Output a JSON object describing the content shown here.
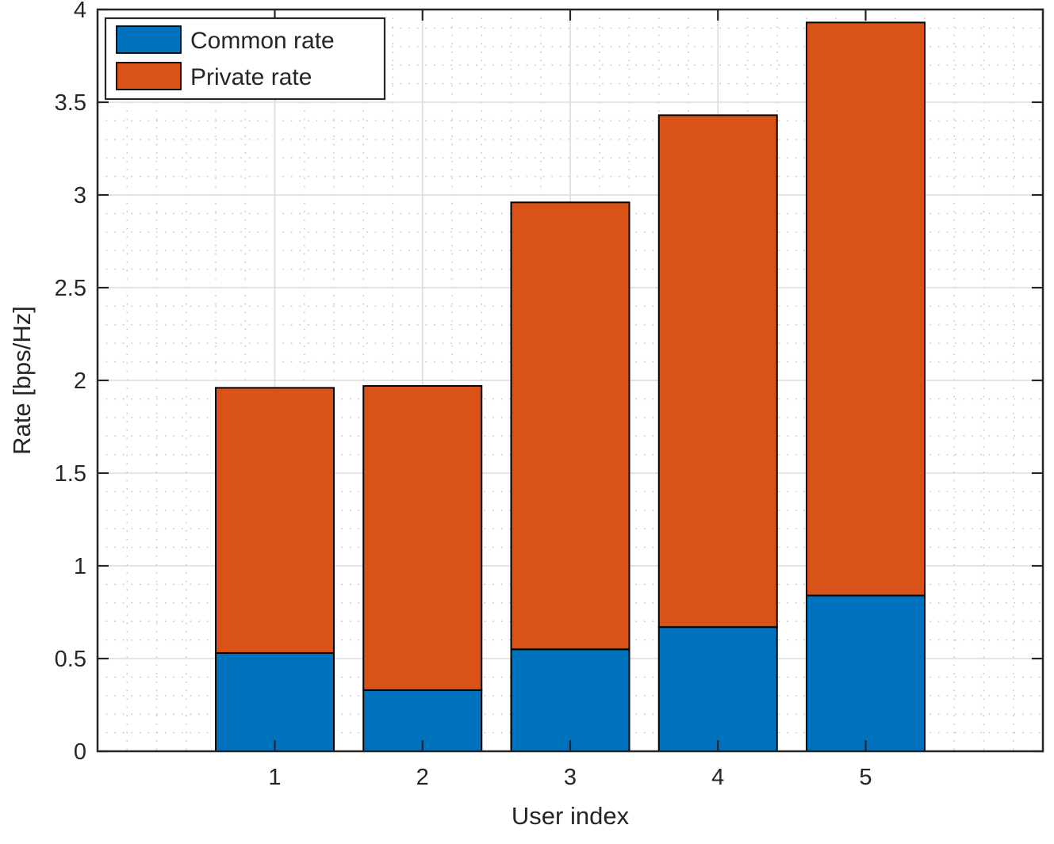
{
  "figure": {
    "background": "#ffffff",
    "axis_color": "#262626",
    "major_grid_color": "#dcdcdc",
    "minor_grid_color": "#bfbfbf",
    "bar_edge_color": "#000000"
  },
  "legend": {
    "position": "top-left",
    "items": [
      {
        "label": "Common rate",
        "color": "#0072BD"
      },
      {
        "label": "Private rate",
        "color": "#D95319"
      }
    ]
  },
  "chart_data": {
    "type": "bar",
    "stacked": true,
    "title": "",
    "xlabel": "User index",
    "ylabel": "Rate [bps/Hz]",
    "categories": [
      "1",
      "2",
      "3",
      "4",
      "5"
    ],
    "series": [
      {
        "name": "Common rate",
        "color": "#0072BD",
        "values": [
          0.53,
          0.33,
          0.55,
          0.67,
          0.84
        ]
      },
      {
        "name": "Private rate",
        "color": "#D95319",
        "values": [
          1.43,
          1.64,
          2.41,
          2.76,
          3.09
        ]
      }
    ],
    "stack_totals": [
      1.96,
      1.97,
      2.96,
      3.43,
      3.93
    ],
    "xticks": [
      1,
      2,
      3,
      4,
      5
    ],
    "yticks": [
      0,
      0.5,
      1,
      1.5,
      2,
      2.5,
      3,
      3.5,
      4
    ],
    "ytick_labels": [
      "0",
      "0.5",
      "1",
      "1.5",
      "2",
      "2.5",
      "3",
      "3.5",
      "4"
    ],
    "xlim": [
      -0.2,
      6.2
    ],
    "ylim": [
      0,
      4
    ],
    "bar_width": 0.8,
    "grid": true,
    "minor_grid": true,
    "minor_y_step": 0.1,
    "minor_x_step": 0.2,
    "legend_position": "top-left"
  }
}
